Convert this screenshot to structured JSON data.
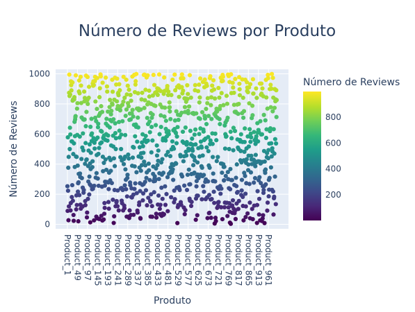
{
  "chart_data": {
    "type": "scatter",
    "title": "Número de Reviews por Produto",
    "xlabel": "Produto",
    "ylabel": "Número de Reviews",
    "ylim": [
      -30,
      1030
    ],
    "yticks": [
      0,
      200,
      400,
      600,
      800,
      1000
    ],
    "grid": true,
    "categories_count": 1000,
    "xtick_labels": [
      "Product_1",
      "Product_49",
      "Product_97",
      "Product_145",
      "Product_193",
      "Product_241",
      "Product_289",
      "Product_337",
      "Product_385",
      "Product_433",
      "Product_481",
      "Product_529",
      "Product_577",
      "Product_625",
      "Product_673",
      "Product_721",
      "Product_769",
      "Product_817",
      "Product_865",
      "Product_913",
      "Product_961"
    ],
    "xtick_indices": [
      1,
      49,
      97,
      145,
      193,
      241,
      289,
      337,
      385,
      433,
      481,
      529,
      577,
      625,
      673,
      721,
      769,
      817,
      865,
      913,
      961
    ],
    "point_count": 1000,
    "value_range": [
      1,
      1000
    ],
    "colorscale": "Viridis",
    "colorbar": {
      "title": "Número de Reviews",
      "ticks": [
        200,
        400,
        600,
        800
      ],
      "range": [
        1,
        1000
      ]
    },
    "colors": {
      "plot_bg": "#e5ecf6",
      "grid": "#ffffff",
      "text": "#2a3f5f"
    }
  }
}
